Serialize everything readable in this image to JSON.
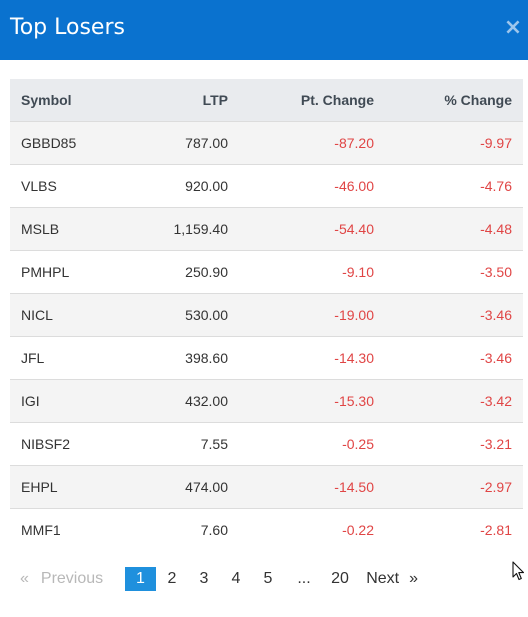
{
  "modal": {
    "title": "Top Losers",
    "close_symbol": "×"
  },
  "table": {
    "columns": [
      "Symbol",
      "LTP",
      "Pt. Change",
      "% Change"
    ],
    "rows": [
      {
        "symbol": "GBBD85",
        "ltp": "787.00",
        "pt_change": "-87.20",
        "pct_change": "-9.97"
      },
      {
        "symbol": "VLBS",
        "ltp": "920.00",
        "pt_change": "-46.00",
        "pct_change": "-4.76"
      },
      {
        "symbol": "MSLB",
        "ltp": "1,159.40",
        "pt_change": "-54.40",
        "pct_change": "-4.48"
      },
      {
        "symbol": "PMHPL",
        "ltp": "250.90",
        "pt_change": "-9.10",
        "pct_change": "-3.50"
      },
      {
        "symbol": "NICL",
        "ltp": "530.00",
        "pt_change": "-19.00",
        "pct_change": "-3.46"
      },
      {
        "symbol": "JFL",
        "ltp": "398.60",
        "pt_change": "-14.30",
        "pct_change": "-3.46"
      },
      {
        "symbol": "IGI",
        "ltp": "432.00",
        "pt_change": "-15.30",
        "pct_change": "-3.42"
      },
      {
        "symbol": "NIBSF2",
        "ltp": "7.55",
        "pt_change": "-0.25",
        "pct_change": "-3.21"
      },
      {
        "symbol": "EHPL",
        "ltp": "474.00",
        "pt_change": "-14.50",
        "pct_change": "-2.97"
      },
      {
        "symbol": "MMF1",
        "ltp": "7.60",
        "pt_change": "-0.22",
        "pct_change": "-2.81"
      }
    ]
  },
  "pagination": {
    "prev_arrow": "«",
    "prev_label": "Previous",
    "pages": [
      "1",
      "2",
      "3",
      "4",
      "5"
    ],
    "ellipsis": "...",
    "last_page": "20",
    "next_label": "Next",
    "next_arrow": "»",
    "current_page": "1"
  },
  "colors": {
    "header_bg": "#0a72cf",
    "negative": "#e04545",
    "active_page": "#1f90dd"
  }
}
